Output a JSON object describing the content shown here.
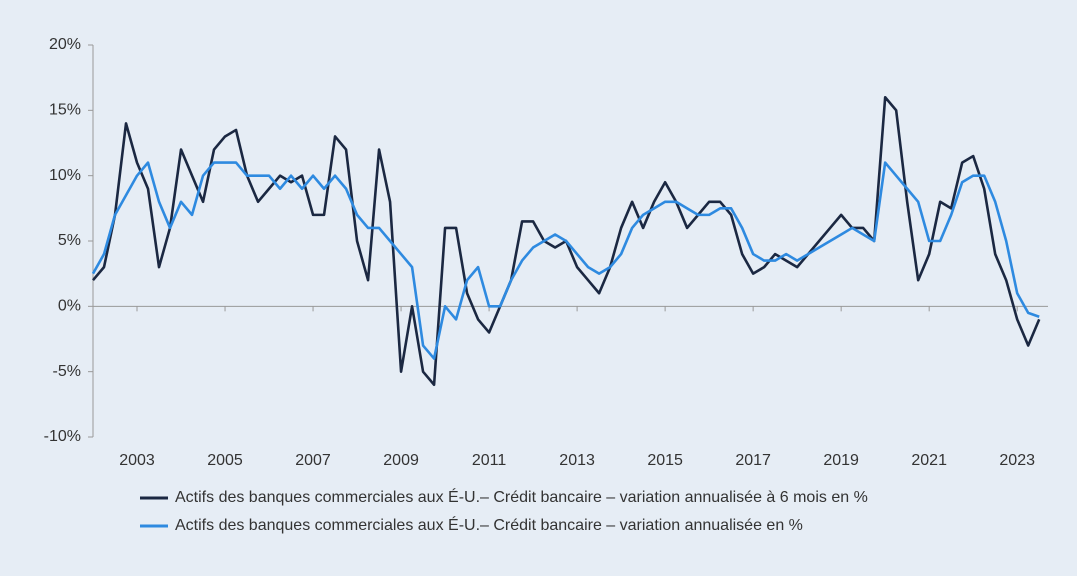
{
  "chart_data": {
    "type": "line",
    "x": [
      2002,
      2002.25,
      2002.5,
      2002.75,
      2003,
      2003.25,
      2003.5,
      2003.75,
      2004,
      2004.25,
      2004.5,
      2004.75,
      2005,
      2005.25,
      2005.5,
      2005.75,
      2006,
      2006.25,
      2006.5,
      2006.75,
      2007,
      2007.25,
      2007.5,
      2007.75,
      2008,
      2008.25,
      2008.5,
      2008.75,
      2009,
      2009.25,
      2009.5,
      2009.75,
      2010,
      2010.25,
      2010.5,
      2010.75,
      2011,
      2011.25,
      2011.5,
      2011.75,
      2012,
      2012.25,
      2012.5,
      2012.75,
      2013,
      2013.25,
      2013.5,
      2013.75,
      2014,
      2014.25,
      2014.5,
      2014.75,
      2015,
      2015.25,
      2015.5,
      2015.75,
      2016,
      2016.25,
      2016.5,
      2016.75,
      2017,
      2017.25,
      2017.5,
      2017.75,
      2018,
      2018.25,
      2018.5,
      2018.75,
      2019,
      2019.25,
      2019.5,
      2019.75,
      2020,
      2020.25,
      2020.5,
      2020.75,
      2021,
      2021.25,
      2021.5,
      2021.75,
      2022,
      2022.25,
      2022.5,
      2022.75,
      2023,
      2023.25,
      2023.5
    ],
    "series": [
      {
        "name": "Actifs des banques commerciales aux É-U.– Crédit bancaire – variation annualisée à 6 mois en %",
        "color": "#1b2842",
        "values": [
          2,
          3,
          7,
          14,
          11,
          9,
          3,
          6,
          12,
          10,
          8,
          12,
          13,
          13.5,
          10,
          8,
          9,
          10,
          9.5,
          10,
          7,
          7,
          13,
          12,
          5,
          2,
          12,
          8,
          -5,
          0,
          -5,
          -6,
          6,
          6,
          1,
          -1,
          -2,
          0,
          2,
          6.5,
          6.5,
          5,
          4.5,
          5,
          3,
          2,
          1,
          3,
          6,
          8,
          6,
          8,
          9.5,
          8,
          6,
          7,
          8,
          8,
          7,
          4,
          2.5,
          3,
          4,
          3.5,
          3,
          4,
          5,
          6,
          7,
          6,
          6,
          5,
          16,
          15,
          8,
          2,
          4,
          8,
          7.5,
          11,
          11.5,
          9,
          4,
          2,
          -1,
          -3,
          -1
        ]
      },
      {
        "name": "Actifs des banques commerciales aux É-U.– Crédit bancaire – variation annualisée en %",
        "color": "#2e8ae0",
        "values": [
          2.5,
          4,
          7,
          8.5,
          10,
          11,
          8,
          6,
          8,
          7,
          10,
          11,
          11,
          11,
          10,
          10,
          10,
          9,
          10,
          9,
          10,
          9,
          10,
          9,
          7,
          6,
          6,
          5,
          4,
          3,
          -3,
          -4,
          0,
          -1,
          2,
          3,
          0,
          0,
          2,
          3.5,
          4.5,
          5,
          5.5,
          5,
          4,
          3,
          2.5,
          3,
          4,
          6,
          7,
          7.5,
          8,
          8,
          7.5,
          7,
          7,
          7.5,
          7.5,
          6,
          4,
          3.5,
          3.5,
          4,
          3.5,
          4,
          4.5,
          5,
          5.5,
          6,
          5.5,
          5,
          11,
          10,
          9,
          8,
          5,
          5,
          7,
          9.5,
          10,
          10,
          8,
          5,
          1,
          -0.5,
          -0.8
        ]
      }
    ],
    "xlim": [
      2002,
      2023.7
    ],
    "xticks": [
      2003,
      2005,
      2007,
      2009,
      2011,
      2013,
      2015,
      2017,
      2019,
      2021,
      2023
    ],
    "ylim": [
      -10,
      20
    ],
    "yticks": [
      {
        "value": -10,
        "label": "-10%"
      },
      {
        "value": -5,
        "label": "-5%"
      },
      {
        "value": 0,
        "label": "0%"
      },
      {
        "value": 5,
        "label": "5%"
      },
      {
        "value": 10,
        "label": "10%"
      },
      {
        "value": 15,
        "label": "15%"
      },
      {
        "value": 20,
        "label": "20%"
      }
    ]
  }
}
